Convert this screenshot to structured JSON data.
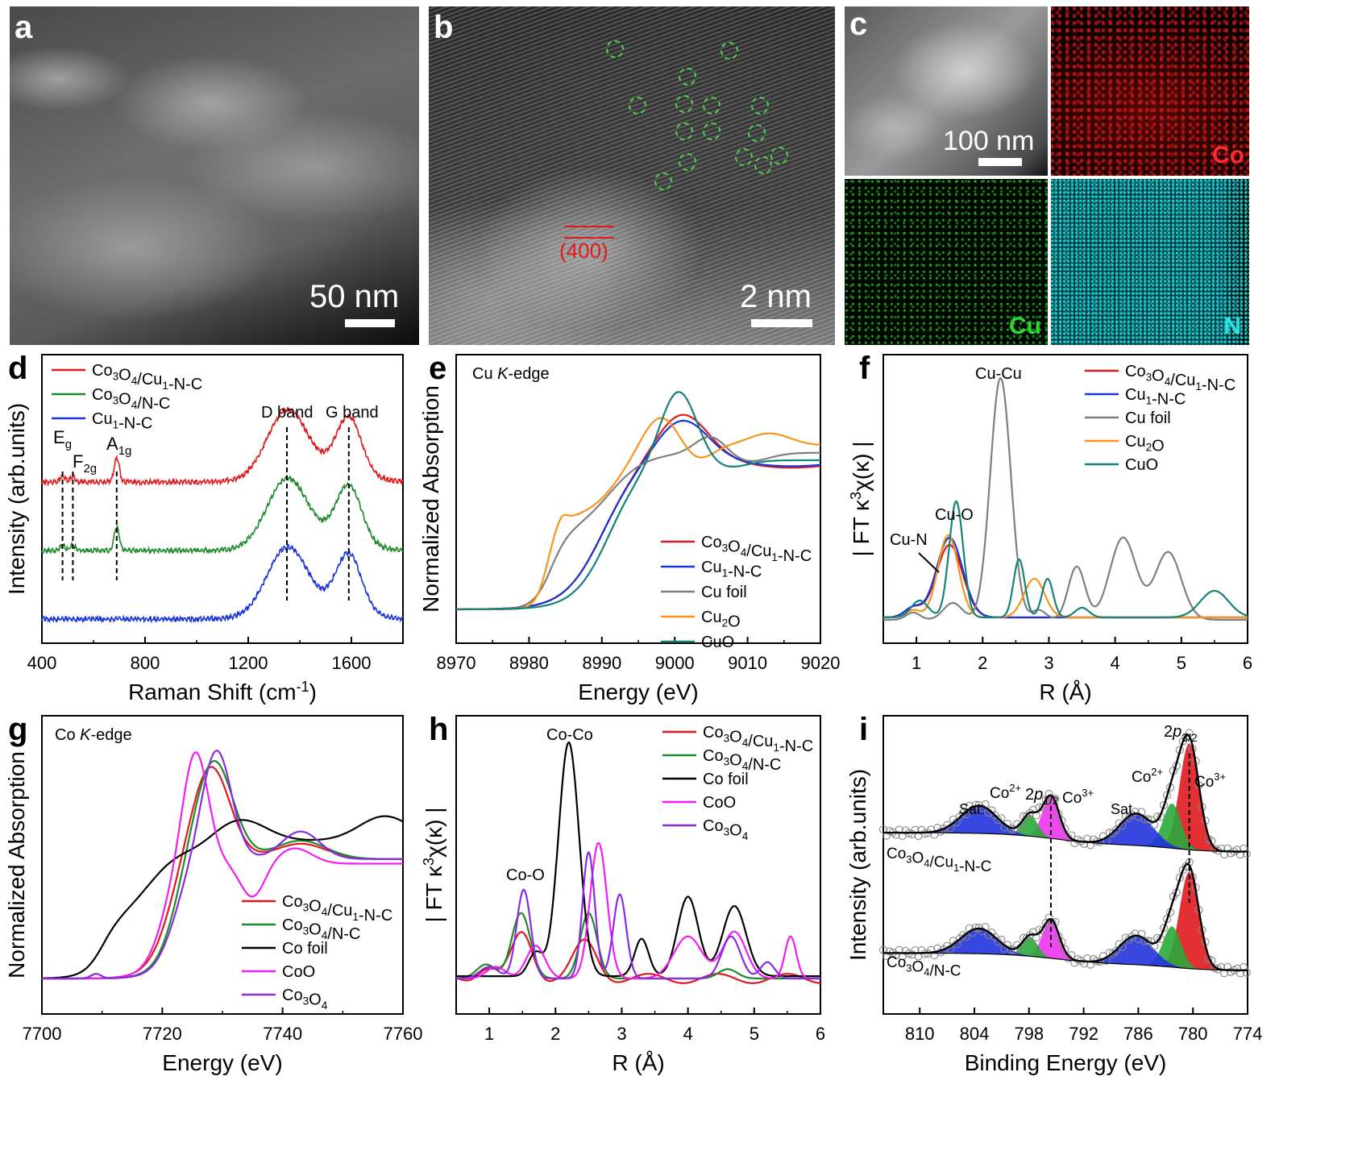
{
  "panels": {
    "a": {
      "label": "a",
      "scale": "50 nm"
    },
    "b": {
      "label": "b",
      "scale": "2 nm",
      "lattice": "(400)"
    },
    "c": {
      "label": "c",
      "scale": "100 nm",
      "maps": [
        "Co",
        "Cu",
        "N"
      ]
    },
    "d": {
      "label": "d"
    },
    "e": {
      "label": "e"
    },
    "f": {
      "label": "f"
    },
    "g": {
      "label": "g"
    },
    "h": {
      "label": "h"
    },
    "i": {
      "label": "i"
    }
  },
  "colors": {
    "red": "#e0191e",
    "green": "#1d8a2a",
    "blue": "#1833d6",
    "gray": "#7f7f7f",
    "orange": "#f7941d",
    "teal": "#14827a",
    "black": "#000000",
    "magenta": "#f21df2",
    "purple": "#8a2be2",
    "ring": "#4cd44c"
  },
  "chart_data": [
    {
      "id": "d",
      "type": "line",
      "xlabel": "Raman Shift (cm-1)",
      "ylabel": "Intensity (arb.units)",
      "xlim": [
        400,
        1800
      ],
      "xticks": [
        "400",
        "800",
        "1200",
        "1600"
      ],
      "series": [
        {
          "name": "Co3O4/Cu1-N-C",
          "color": "red",
          "offset": 2.0
        },
        {
          "name": "Co3O4/N-C",
          "color": "green",
          "offset": 1.0
        },
        {
          "name": "Cu1-N-C",
          "color": "blue",
          "offset": 0.0
        }
      ],
      "peaks": [
        {
          "label": "Eg",
          "x": 480
        },
        {
          "label": "F2g",
          "x": 520
        },
        {
          "label": "A1g",
          "x": 690
        },
        {
          "label": "D band",
          "x": 1350
        },
        {
          "label": "G band",
          "x": 1590
        }
      ],
      "annotations": [
        "D band",
        "G band"
      ]
    },
    {
      "id": "e",
      "type": "line",
      "title": "Cu K-edge",
      "xlabel": "Energy (eV)",
      "ylabel": "Normalized Absorption",
      "xlim": [
        8970,
        9020
      ],
      "xticks": [
        "8970",
        "8980",
        "8990",
        "9000",
        "9010",
        "9020"
      ],
      "series": [
        {
          "name": "Co3O4/Cu1-N-C",
          "color": "red"
        },
        {
          "name": "Cu1-N-C",
          "color": "blue"
        },
        {
          "name": "Cu foil",
          "color": "gray"
        },
        {
          "name": "Cu2O",
          "color": "orange"
        },
        {
          "name": "CuO",
          "color": "teal"
        }
      ]
    },
    {
      "id": "f",
      "type": "line",
      "xlabel": "R (Å)",
      "ylabel": "| FT κ3χ(κ) |",
      "xlim": [
        0.5,
        6
      ],
      "xticks": [
        "1",
        "2",
        "3",
        "4",
        "5",
        "6"
      ],
      "series": [
        {
          "name": "Co3O4/Cu1-N-C",
          "color": "red"
        },
        {
          "name": "Cu1-N-C",
          "color": "blue"
        },
        {
          "name": "Cu foil",
          "color": "gray"
        },
        {
          "name": "Cu2O",
          "color": "orange"
        },
        {
          "name": "CuO",
          "color": "teal"
        }
      ],
      "annotations": [
        "Cu-Cu",
        "Cu-O",
        "Cu-N"
      ]
    },
    {
      "id": "g",
      "type": "line",
      "title": "Co K-edge",
      "xlabel": "Energy (eV)",
      "ylabel": "Normalized Absorption",
      "xlim": [
        7700,
        7760
      ],
      "xticks": [
        "7700",
        "7720",
        "7740",
        "7760"
      ],
      "series": [
        {
          "name": "Co3O4/Cu1-N-C",
          "color": "red"
        },
        {
          "name": "Co3O4/N-C",
          "color": "green"
        },
        {
          "name": "Co foil",
          "color": "black"
        },
        {
          "name": "CoO",
          "color": "magenta"
        },
        {
          "name": "Co3O4",
          "color": "purple"
        }
      ]
    },
    {
      "id": "h",
      "type": "line",
      "xlabel": "R (Å)",
      "ylabel": "| FT κ3χ(κ) |",
      "xlim": [
        0.5,
        6
      ],
      "xticks": [
        "1",
        "2",
        "3",
        "4",
        "5",
        "6"
      ],
      "series": [
        {
          "name": "Co3O4/Cu1-N-C",
          "color": "red"
        },
        {
          "name": "Co3O4/N-C",
          "color": "green"
        },
        {
          "name": "Co foil",
          "color": "black"
        },
        {
          "name": "CoO",
          "color": "magenta"
        },
        {
          "name": "Co3O4",
          "color": "purple"
        }
      ],
      "annotations": [
        "Co-Co",
        "Co-O"
      ]
    },
    {
      "id": "i",
      "type": "line",
      "xlabel": "Binding Energy (eV)",
      "ylabel": "Intensity (arb.units)",
      "xlim": [
        814,
        774
      ],
      "xticks": [
        "810",
        "804",
        "798",
        "792",
        "786",
        "780",
        "774"
      ],
      "series": [
        {
          "name": "Co3O4/Cu1-N-C",
          "offset": 1.0
        },
        {
          "name": "Co3O4/N-C",
          "offset": 0.0
        }
      ],
      "annotations": [
        "2p3/2",
        "2p1/2",
        "Co2+",
        "Co3+",
        "Sat."
      ]
    }
  ]
}
